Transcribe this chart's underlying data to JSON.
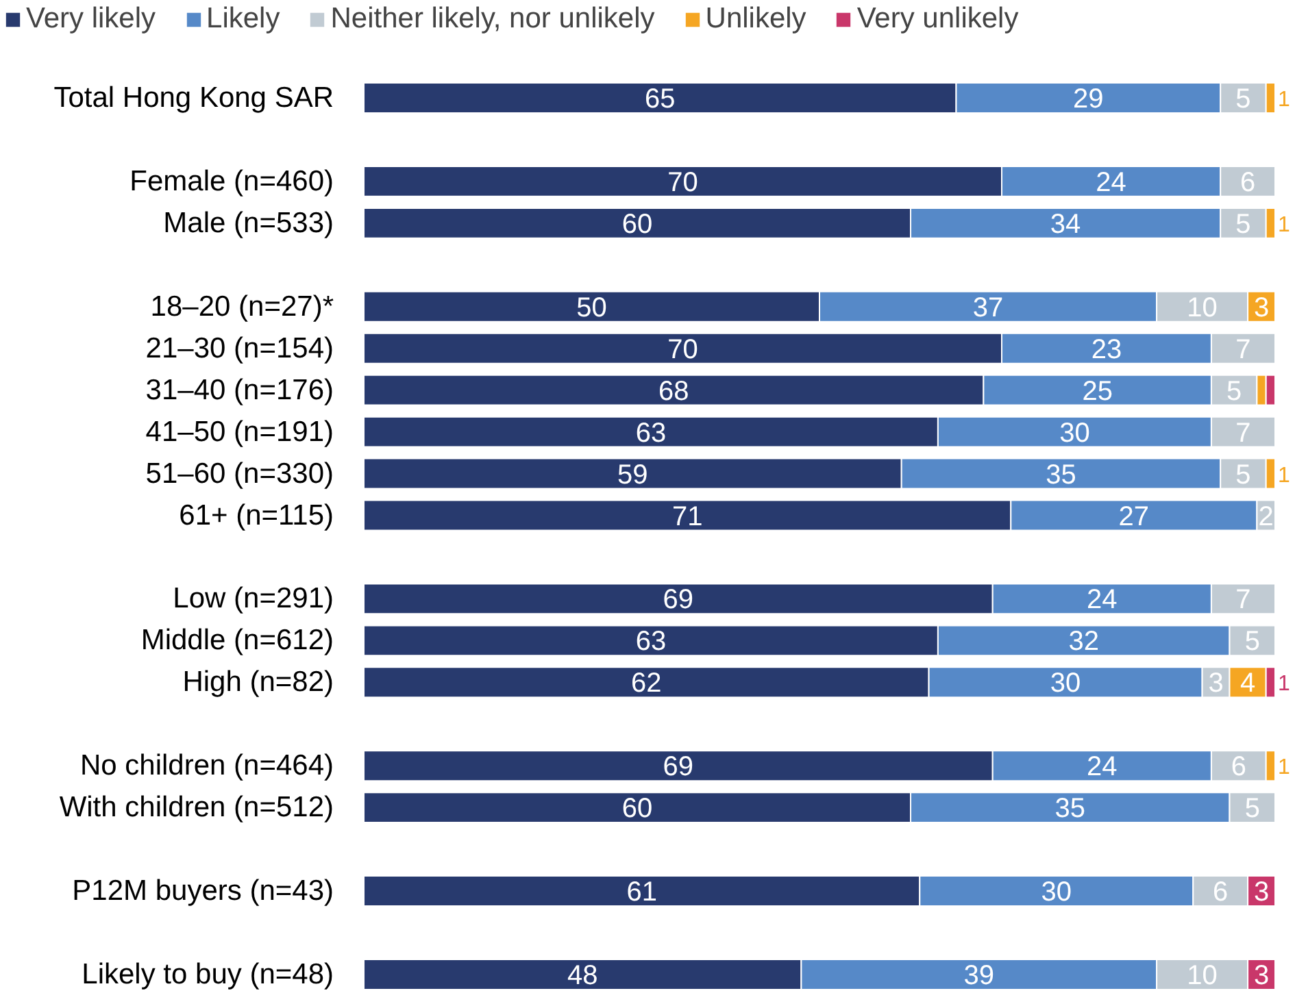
{
  "chart_data": {
    "type": "bar",
    "orientation": "horizontal",
    "stacked": true,
    "legend": "top",
    "grid": false,
    "data_labels": true,
    "categories": [
      "Total Hong Kong SAR",
      null,
      "Female (n=460)",
      "Male (n=533)",
      null,
      "18–20 (n=27)*",
      "21–30 (n=154)",
      "31–40 (n=176)",
      "41–50 (n=191)",
      "51–60 (n=330)",
      "61+ (n=115)",
      null,
      "Low (n=291)",
      "Middle (n=612)",
      "High (n=82)",
      null,
      "No children (n=464)",
      "With children (n=512)",
      null,
      "P12M buyers (n=43)",
      null,
      "Likely to buy (n=48)"
    ],
    "series": [
      {
        "name": "Very likely",
        "color": "#283a6e",
        "values": [
          65,
          null,
          70,
          60,
          null,
          50,
          70,
          68,
          63,
          59,
          71,
          null,
          69,
          63,
          62,
          null,
          69,
          60,
          null,
          61,
          null,
          48
        ]
      },
      {
        "name": "Likely",
        "color": "#5689c8",
        "values": [
          29,
          null,
          24,
          34,
          null,
          37,
          23,
          25,
          30,
          35,
          27,
          null,
          24,
          32,
          30,
          null,
          24,
          35,
          null,
          30,
          null,
          39
        ]
      },
      {
        "name": "Neither likely, nor unlikely",
        "color": "#c1cbd3",
        "values": [
          5,
          null,
          6,
          5,
          null,
          10,
          7,
          5,
          7,
          5,
          2,
          null,
          7,
          5,
          3,
          null,
          6,
          5,
          null,
          6,
          null,
          10
        ]
      },
      {
        "name": "Unlikely",
        "color": "#f5a623",
        "values": [
          1,
          null,
          null,
          1,
          null,
          3,
          null,
          1,
          null,
          1,
          null,
          null,
          null,
          null,
          4,
          null,
          1,
          null,
          null,
          null,
          null,
          null
        ],
        "value_labels": [
          "1",
          null,
          null,
          "1",
          null,
          "3",
          null,
          null,
          null,
          "1",
          null,
          null,
          null,
          null,
          "4",
          null,
          "1",
          null,
          null,
          null,
          null,
          null
        ]
      },
      {
        "name": "Very unlikely",
        "color": "#c9376a",
        "values": [
          null,
          null,
          null,
          null,
          null,
          null,
          null,
          1,
          null,
          null,
          null,
          null,
          null,
          null,
          1,
          null,
          null,
          null,
          null,
          3,
          null,
          3
        ],
        "value_labels": [
          null,
          null,
          null,
          null,
          null,
          null,
          null,
          null,
          null,
          null,
          null,
          null,
          null,
          null,
          "1",
          null,
          null,
          null,
          null,
          "3",
          null,
          "3"
        ]
      }
    ]
  }
}
